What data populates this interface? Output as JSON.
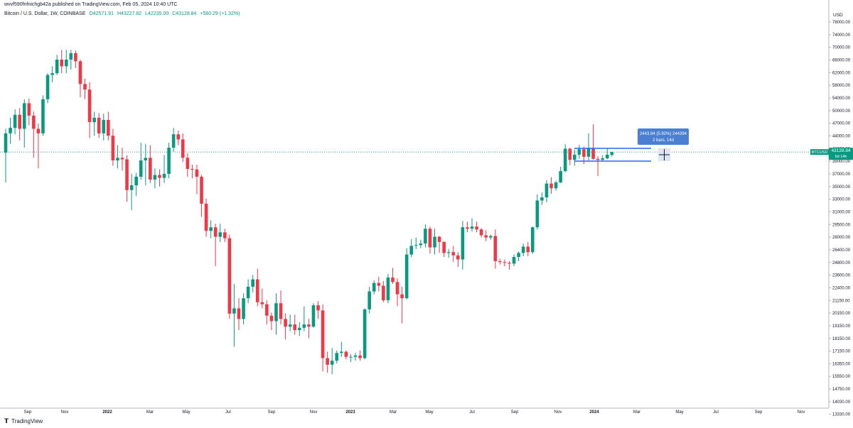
{
  "header": {
    "published": "wvvf590fnfnichgb42a published on TradingView.com, Feb 05, 2024 10:40 UTC",
    "symbol": "Bitcoin / U.S. Dollar, 1W, COINBASE",
    "open": "O42571.91",
    "high": "H43227.82",
    "low": "L42235.00",
    "close": "C43128.84",
    "change": "+560.29 (+1.32%)"
  },
  "price_axis": {
    "label": "USD",
    "ticks": [
      "78000.00",
      "74000.00",
      "70000.00",
      "66000.00",
      "62000.00",
      "58000.00",
      "54000.00",
      "50000.00",
      "47000.00",
      "44000.00",
      "41000.00",
      "39000.00",
      "37000.00",
      "35000.00",
      "33000.00",
      "31000.00",
      "29500.00",
      "28000.00",
      "26400.00",
      "24800.00",
      "23600.00",
      "22400.00",
      "21150.00",
      "20150.00",
      "19150.00",
      "18150.00",
      "17150.00",
      "16350.00",
      "15550.00",
      "14750.00",
      "14030.00",
      "13330.00"
    ],
    "last_price_tag": "BTCUSD",
    "last_price": "43128.84",
    "countdown": "6d 14h"
  },
  "time_axis": {
    "ticks": [
      "Sep",
      "Nov",
      "2022",
      "Mar",
      "May",
      "Jul",
      "Sep",
      "Nov",
      "2023",
      "Mar",
      "May",
      "Jul",
      "Sep",
      "Nov",
      "2024",
      "Mar",
      "May",
      "Jul",
      "Sep",
      "Nov"
    ]
  },
  "measure_tool": {
    "line1": "2443.94 (5.92%) 244394",
    "line2": "2 bars, 14d"
  },
  "footer": {
    "brand": "TradingView"
  },
  "colors": {
    "up": "#089981",
    "down": "#f23645",
    "measure": "#2962ff",
    "last_price": "#089981"
  },
  "chart_data": {
    "type": "candlestick",
    "symbol": "Bitcoin / U.S. Dollar",
    "interval": "1W",
    "exchange": "COINBASE",
    "scale": "log",
    "grid": false,
    "candles": [
      [
        43000,
        48000,
        37500,
        47000
      ],
      [
        47000,
        50500,
        44800,
        48200
      ],
      [
        48200,
        52500,
        46800,
        51200
      ],
      [
        51200,
        52800,
        45500,
        48000
      ],
      [
        48000,
        55000,
        44000,
        54000
      ],
      [
        54000,
        55200,
        48800,
        51000
      ],
      [
        51000,
        52000,
        42000,
        48000
      ],
      [
        48000,
        49200,
        40000,
        47000
      ],
      [
        47000,
        56000,
        46500,
        55000
      ],
      [
        55000,
        62000,
        54000,
        61500
      ],
      [
        61500,
        64000,
        59500,
        62000
      ],
      [
        62000,
        67500,
        61500,
        66000
      ],
      [
        66000,
        69000,
        62000,
        64000
      ],
      [
        64000,
        69000,
        62000,
        66000
      ],
      [
        66000,
        69000,
        63000,
        68000
      ],
      [
        68000,
        68800,
        63500,
        65500
      ],
      [
        65500,
        66000,
        55500,
        59000
      ],
      [
        59000,
        60500,
        55000,
        57500
      ],
      [
        57500,
        59500,
        46000,
        49500
      ],
      [
        49500,
        51900,
        46500,
        50500
      ],
      [
        50500,
        51600,
        46000,
        47000
      ],
      [
        47000,
        51500,
        45500,
        50000
      ],
      [
        50000,
        51900,
        45500,
        46500
      ],
      [
        46500,
        48000,
        40500,
        41500
      ],
      [
        41500,
        44500,
        40000,
        42000
      ],
      [
        42000,
        44000,
        39600,
        41700
      ],
      [
        41700,
        42500,
        34300,
        36200
      ],
      [
        36200,
        39000,
        33000,
        37000
      ],
      [
        37000,
        39200,
        35200,
        38500
      ],
      [
        38500,
        45000,
        38000,
        41500
      ],
      [
        41500,
        44800,
        37000,
        42000
      ],
      [
        42000,
        44500,
        37400,
        38000
      ],
      [
        38000,
        40000,
        36500,
        38800
      ],
      [
        38800,
        39800,
        36800,
        38300
      ],
      [
        38300,
        42500,
        37400,
        39000
      ],
      [
        39000,
        45000,
        38200,
        44000
      ],
      [
        44000,
        48200,
        43200,
        46800
      ],
      [
        46800,
        47600,
        44500,
        45700
      ],
      [
        45700,
        47000,
        41200,
        42000
      ],
      [
        42000,
        42900,
        38500,
        39900
      ],
      [
        39900,
        40700,
        38200,
        39800
      ],
      [
        39800,
        40700,
        35500,
        38500
      ],
      [
        38500,
        38800,
        32000,
        34000
      ],
      [
        34000,
        34800,
        29200,
        30000
      ],
      [
        30000,
        31500,
        29000,
        30500
      ],
      [
        30500,
        31000,
        25500,
        29200
      ],
      [
        29200,
        31000,
        28500,
        29800
      ],
      [
        29800,
        30300,
        28500,
        29000
      ],
      [
        29000,
        29500,
        20000,
        20500
      ],
      [
        20500,
        23500,
        17600,
        21000
      ],
      [
        21000,
        22000,
        19000,
        20000
      ],
      [
        20000,
        22500,
        19500,
        22000
      ],
      [
        22000,
        24000,
        21500,
        23200
      ],
      [
        23200,
        24500,
        22600,
        24000
      ],
      [
        24000,
        25200,
        21200,
        21600
      ],
      [
        21600,
        23000,
        21000,
        21400
      ],
      [
        21400,
        21800,
        19500,
        20300
      ],
      [
        20300,
        20600,
        19000,
        19800
      ],
      [
        19800,
        22500,
        18600,
        21500
      ],
      [
        21500,
        22800,
        19500,
        20000
      ],
      [
        20000,
        20500,
        18200,
        19300
      ],
      [
        19300,
        20400,
        18900,
        19500
      ],
      [
        19500,
        20400,
        18600,
        19000
      ],
      [
        19000,
        19700,
        18500,
        19200
      ],
      [
        19200,
        21200,
        18900,
        19500
      ],
      [
        19500,
        20000,
        18300,
        19300
      ],
      [
        19300,
        21500,
        19200,
        21300
      ],
      [
        21300,
        21700,
        20000,
        20800
      ],
      [
        20800,
        21400,
        15700,
        16700
      ],
      [
        16700,
        17200,
        15600,
        16200
      ],
      [
        16200,
        17500,
        15500,
        16500
      ],
      [
        16500,
        17300,
        16300,
        17100
      ],
      [
        17100,
        18000,
        16800,
        17200
      ],
      [
        17200,
        17300,
        16600,
        16800
      ],
      [
        16800,
        17000,
        16400,
        16800
      ],
      [
        16800,
        17100,
        16500,
        16900
      ],
      [
        16900,
        17300,
        16500,
        16700
      ],
      [
        16700,
        21000,
        16600,
        20900
      ],
      [
        20900,
        23200,
        20500,
        22700
      ],
      [
        22700,
        23900,
        22400,
        23600
      ],
      [
        23600,
        24300,
        22700,
        23300
      ],
      [
        23300,
        23800,
        21600,
        21800
      ],
      [
        21800,
        24600,
        21500,
        24200
      ],
      [
        24200,
        25300,
        23500,
        23700
      ],
      [
        23700,
        24100,
        21200,
        22400
      ],
      [
        22400,
        23200,
        19600,
        22000
      ],
      [
        22000,
        27700,
        21900,
        26900
      ],
      [
        26900,
        28900,
        26600,
        28000
      ],
      [
        28000,
        29100,
        27600,
        28100
      ],
      [
        28100,
        28800,
        27700,
        28300
      ],
      [
        28300,
        30900,
        27800,
        30300
      ],
      [
        30300,
        30600,
        27000,
        27800
      ],
      [
        27800,
        30300,
        26900,
        29200
      ],
      [
        29200,
        29300,
        27100,
        28500
      ],
      [
        28500,
        28600,
        26600,
        27100
      ],
      [
        27100,
        27600,
        26500,
        27200
      ],
      [
        27200,
        28000,
        26000,
        26800
      ],
      [
        26800,
        27200,
        25400,
        26300
      ],
      [
        26300,
        31400,
        25100,
        30500
      ],
      [
        30500,
        31300,
        29800,
        30300
      ],
      [
        30300,
        31800,
        29900,
        30600
      ],
      [
        30600,
        31300,
        29800,
        30200
      ],
      [
        30200,
        30400,
        29100,
        29400
      ],
      [
        29400,
        30100,
        28600,
        29100
      ],
      [
        29100,
        29500,
        28800,
        29300
      ],
      [
        29300,
        30200,
        25200,
        26100
      ],
      [
        26100,
        26400,
        25700,
        26000
      ],
      [
        26000,
        26300,
        25500,
        25900
      ],
      [
        25900,
        26100,
        25100,
        25800
      ],
      [
        25800,
        26900,
        25500,
        26600
      ],
      [
        26600,
        27300,
        26100,
        27100
      ],
      [
        27100,
        28300,
        26700,
        27900
      ],
      [
        27900,
        28500,
        26700,
        27200
      ],
      [
        27200,
        30600,
        27000,
        30500
      ],
      [
        30500,
        35500,
        30200,
        34500
      ],
      [
        34500,
        35800,
        33800,
        35000
      ],
      [
        35000,
        37900,
        34200,
        37300
      ],
      [
        37300,
        38400,
        35600,
        36500
      ],
      [
        36500,
        37800,
        36100,
        37500
      ],
      [
        37500,
        40300,
        37400,
        39500
      ],
      [
        39500,
        44700,
        39300,
        43800
      ],
      [
        43800,
        44000,
        40600,
        41600
      ],
      [
        41600,
        43600,
        40500,
        42600
      ],
      [
        42600,
        44600,
        41800,
        43700
      ],
      [
        43700,
        44200,
        40800,
        42200
      ],
      [
        42200,
        47000,
        41500,
        43800
      ],
      [
        43800,
        49000,
        41600,
        41800
      ],
      [
        41800,
        42300,
        38600,
        41600
      ],
      [
        41600,
        42500,
        41400,
        41900
      ],
      [
        41900,
        43800,
        41700,
        42600
      ],
      [
        42571.91,
        43227.82,
        42235.0,
        43128.84
      ]
    ]
  }
}
